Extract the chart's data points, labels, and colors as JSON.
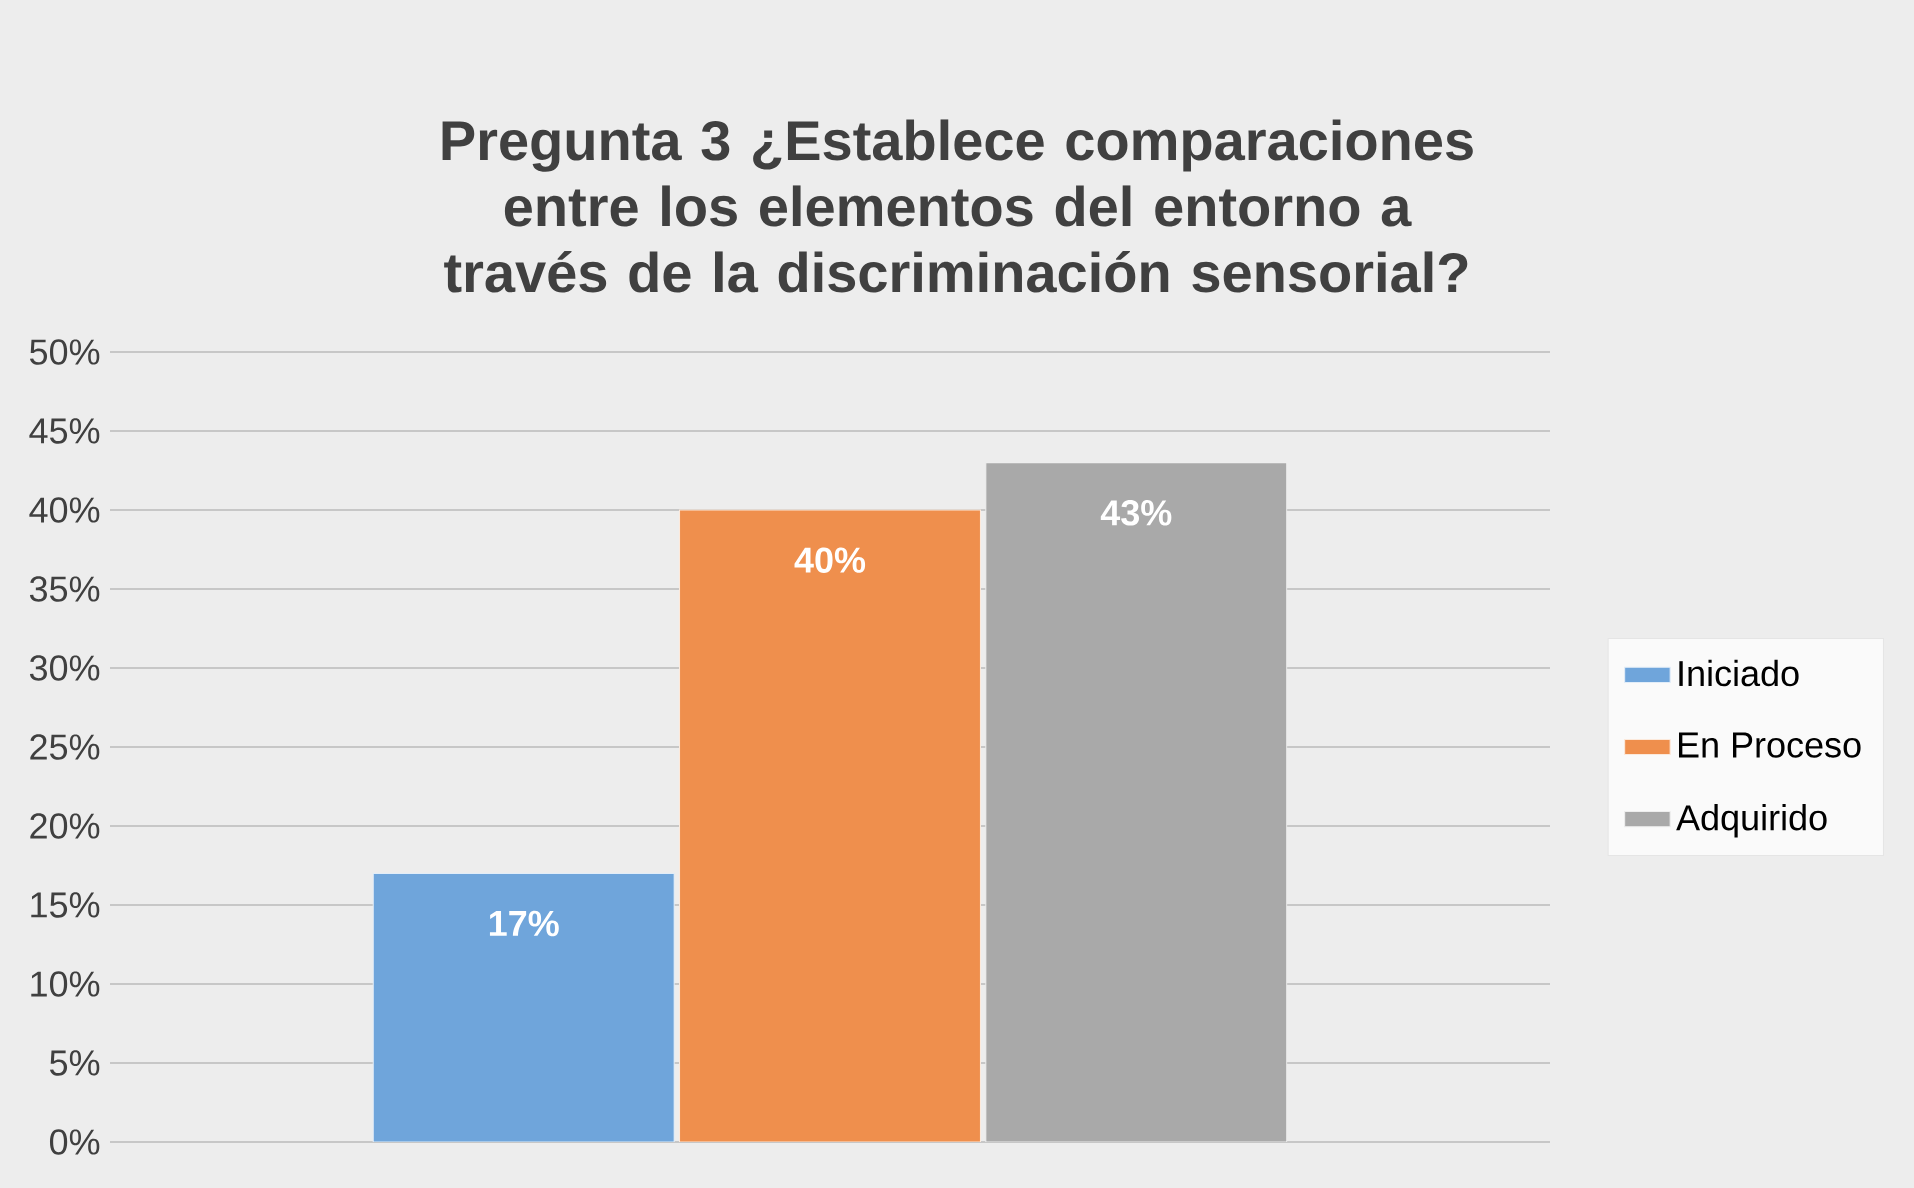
{
  "chart_data": {
    "type": "bar",
    "title": "Pregunta 3 ¿Establece comparaciones entre los elementos del entorno a través de la discriminación sensorial?",
    "categories": [
      null
    ],
    "series": [
      {
        "name": "Iniciado",
        "color": "#6fa5db",
        "values": [
          17
        ],
        "value_labels": [
          "17%"
        ]
      },
      {
        "name": "En Proceso",
        "color": "#ef8f4d",
        "values": [
          40
        ],
        "value_labels": [
          "40%"
        ]
      },
      {
        "name": "Adquirido",
        "color": "#a9a9a9",
        "values": [
          43
        ],
        "value_labels": [
          "43%"
        ]
      }
    ],
    "ylim": [
      0,
      50
    ],
    "yticks": [
      {
        "value": 0,
        "label": "0%"
      },
      {
        "value": 5,
        "label": "5%"
      },
      {
        "value": 10,
        "label": "10%"
      },
      {
        "value": 15,
        "label": "15%"
      },
      {
        "value": 20,
        "label": "20%"
      },
      {
        "value": 25,
        "label": "25%"
      },
      {
        "value": 30,
        "label": "30%"
      },
      {
        "value": 35,
        "label": "35%"
      },
      {
        "value": 40,
        "label": "40%"
      },
      {
        "value": 45,
        "label": "45%"
      },
      {
        "value": 50,
        "label": "50%"
      }
    ],
    "grid": "y",
    "legend": "right"
  }
}
